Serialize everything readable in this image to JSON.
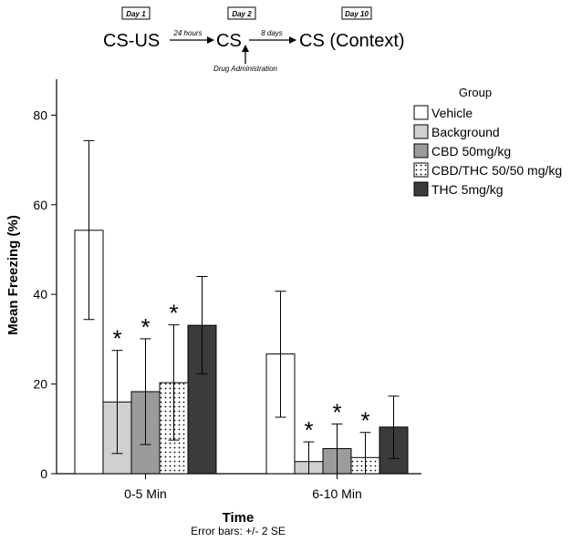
{
  "diagram": {
    "stages": [
      {
        "day": "Day 1",
        "label": "CS-US"
      },
      {
        "day": "Day 2",
        "label": "CS"
      },
      {
        "day": "Day 10",
        "label": "CS (Context)"
      }
    ],
    "arrow1_label": "24 hours",
    "arrow2_label": "8 days",
    "drug_label": "Drug Administration"
  },
  "chart_data": {
    "type": "bar",
    "categories": [
      "0-5 Min",
      "6-10 Min"
    ],
    "xlabel": "Time",
    "ylabel": "Mean Freezing (%)",
    "ylim": [
      0,
      88
    ],
    "yticks": [
      0,
      20,
      40,
      60,
      80
    ],
    "legend_title": "Group",
    "footnote": "Error bars: +/- 2 SE",
    "significance_marker": "*",
    "series": [
      {
        "name": "Vehicle",
        "fill": "#ffffff",
        "pattern": "none",
        "values": [
          54.3,
          26.7
        ],
        "err_low": [
          34.4,
          12.6
        ],
        "err_high": [
          74.3,
          40.7
        ],
        "sig": [
          false,
          false
        ]
      },
      {
        "name": "Background",
        "fill": "#d0d0d0",
        "pattern": "none",
        "values": [
          16.0,
          2.7
        ],
        "err_low": [
          4.5,
          0.0
        ],
        "err_high": [
          27.5,
          7.1
        ],
        "sig": [
          true,
          true
        ]
      },
      {
        "name": "CBD 50mg/kg",
        "fill": "#9b9b9b",
        "pattern": "none",
        "values": [
          18.3,
          5.6
        ],
        "err_low": [
          6.5,
          0.0
        ],
        "err_high": [
          30.1,
          11.1
        ],
        "sig": [
          true,
          true
        ]
      },
      {
        "name": "CBD/THC 50/50 mg/kg",
        "fill": "#ffffff",
        "pattern": "dots",
        "values": [
          20.3,
          3.6
        ],
        "err_low": [
          7.5,
          0.0
        ],
        "err_high": [
          33.2,
          9.2
        ],
        "sig": [
          true,
          true
        ]
      },
      {
        "name": "THC 5mg/kg",
        "fill": "#3b3b3b",
        "pattern": "none",
        "values": [
          33.1,
          10.4
        ],
        "err_low": [
          22.3,
          3.4
        ],
        "err_high": [
          44.0,
          17.3
        ],
        "sig": [
          false,
          false
        ]
      }
    ]
  }
}
